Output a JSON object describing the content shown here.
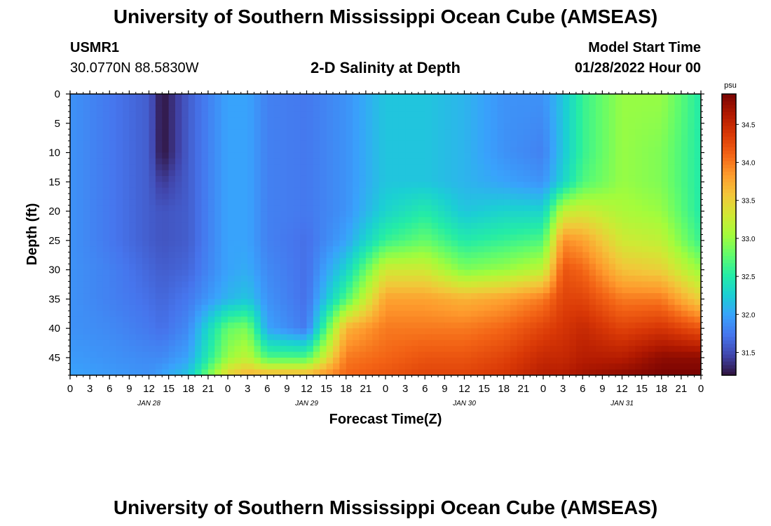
{
  "chart_data": {
    "type": "heatmap",
    "title": "University of Southern Mississippi Ocean Cube (AMSEAS)",
    "subtitle": "2-D Salinity at Depth",
    "station": "USMR1",
    "location": "30.0770N  88.5830W",
    "model_start_label": "Model Start Time",
    "model_start_value": "01/28/2022 Hour 00",
    "xlabel": "Forecast Time(Z)",
    "ylabel": "Depth (ft)",
    "colorbar_unit": "psu",
    "x_hours_range": [
      0,
      96
    ],
    "y_range": [
      0,
      48
    ],
    "x_tick_labels": [
      "0",
      "3",
      "6",
      "9",
      "12",
      "15",
      "18",
      "21",
      "0",
      "3",
      "6",
      "9",
      "12",
      "15",
      "18",
      "21",
      "0",
      "3",
      "6",
      "9",
      "12",
      "15",
      "18",
      "21",
      "0",
      "3",
      "6",
      "9",
      "12",
      "15",
      "18",
      "21",
      "0"
    ],
    "y_tick_labels": [
      "0",
      "5",
      "10",
      "15",
      "20",
      "25",
      "30",
      "35",
      "40",
      "45"
    ],
    "y_tick_values": [
      0,
      5,
      10,
      15,
      20,
      25,
      30,
      35,
      40,
      45
    ],
    "date_labels": [
      {
        "text": "JAN 28",
        "hour": 12
      },
      {
        "text": "JAN 29",
        "hour": 36
      },
      {
        "text": "JAN 30",
        "hour": 60
      },
      {
        "text": "JAN 31",
        "hour": 84
      }
    ],
    "colorbar_range": [
      31.2,
      34.9
    ],
    "colorbar_ticks": [
      "31.5",
      "32.0",
      "32.5",
      "33.0",
      "33.5",
      "34.0",
      "34.5"
    ],
    "colorbar_tick_values": [
      31.5,
      32.0,
      32.5,
      33.0,
      33.5,
      34.0,
      34.5
    ],
    "salinity_grid": {
      "hours": [
        0,
        6,
        12,
        14,
        18,
        24,
        27,
        30,
        36,
        42,
        48,
        54,
        60,
        66,
        72,
        75,
        78,
        84,
        90,
        96
      ],
      "depths": [
        0,
        10,
        15,
        20,
        25,
        30,
        35,
        40,
        45,
        48
      ],
      "values": [
        [
          31.9,
          31.9,
          31.9,
          31.9,
          31.9,
          31.9,
          31.9,
          31.9,
          31.95,
          32.0
        ],
        [
          31.75,
          31.75,
          31.75,
          31.75,
          31.75,
          31.8,
          31.8,
          31.85,
          31.9,
          31.95
        ],
        [
          31.6,
          31.6,
          31.6,
          31.6,
          31.6,
          31.65,
          31.7,
          31.75,
          31.85,
          31.9
        ],
        [
          31.2,
          31.2,
          31.4,
          31.55,
          31.55,
          31.6,
          31.65,
          31.7,
          31.85,
          32.0
        ],
        [
          31.6,
          31.6,
          31.6,
          31.6,
          31.6,
          31.65,
          31.75,
          31.85,
          32.0,
          32.2
        ],
        [
          32.0,
          32.0,
          32.0,
          32.0,
          32.0,
          32.0,
          32.1,
          32.8,
          33.0,
          33.5
        ],
        [
          32.0,
          32.0,
          32.0,
          32.0,
          32.0,
          32.05,
          32.2,
          32.9,
          33.2,
          33.7
        ],
        [
          31.8,
          31.8,
          31.8,
          31.8,
          31.8,
          31.85,
          31.9,
          32.0,
          32.7,
          33.7
        ],
        [
          31.75,
          31.75,
          31.75,
          31.75,
          31.7,
          31.7,
          31.7,
          31.75,
          32.7,
          33.7
        ],
        [
          31.9,
          31.9,
          31.9,
          31.9,
          32.0,
          32.3,
          32.7,
          33.7,
          34.0,
          34.1
        ],
        [
          32.2,
          32.2,
          32.2,
          32.3,
          32.6,
          33.3,
          33.8,
          34.0,
          34.1,
          34.2
        ],
        [
          32.2,
          32.2,
          32.2,
          32.5,
          32.8,
          33.3,
          33.8,
          34.0,
          34.2,
          34.3
        ],
        [
          32.1,
          32.1,
          32.1,
          32.2,
          32.5,
          32.9,
          33.7,
          34.0,
          34.2,
          34.3
        ],
        [
          31.9,
          31.9,
          32.0,
          32.3,
          32.6,
          33.0,
          33.8,
          34.1,
          34.3,
          34.4
        ],
        [
          31.9,
          31.8,
          31.9,
          32.3,
          32.7,
          33.2,
          34.0,
          34.3,
          34.5,
          34.6
        ],
        [
          32.2,
          32.2,
          32.3,
          33.2,
          33.9,
          34.2,
          34.3,
          34.4,
          34.5,
          34.6
        ],
        [
          32.6,
          32.6,
          32.7,
          33.3,
          33.8,
          34.1,
          34.3,
          34.5,
          34.6,
          34.7
        ],
        [
          33.0,
          33.0,
          33.0,
          33.1,
          33.3,
          33.6,
          34.0,
          34.3,
          34.6,
          34.8
        ],
        [
          33.0,
          32.9,
          32.9,
          33.0,
          33.2,
          33.5,
          34.0,
          34.4,
          34.8,
          34.9
        ],
        [
          32.5,
          32.5,
          32.5,
          32.5,
          32.6,
          33.0,
          33.5,
          34.2,
          34.8,
          34.9
        ]
      ]
    },
    "colormap": [
      "#30123b",
      "#4145ab",
      "#4675ed",
      "#39a2fc",
      "#1bcfd4",
      "#24eca6",
      "#61fc6c",
      "#a4fc3b",
      "#d1e834",
      "#f3c63a",
      "#fe9b2d",
      "#f36315",
      "#d93806",
      "#b11901",
      "#7a0402"
    ]
  }
}
